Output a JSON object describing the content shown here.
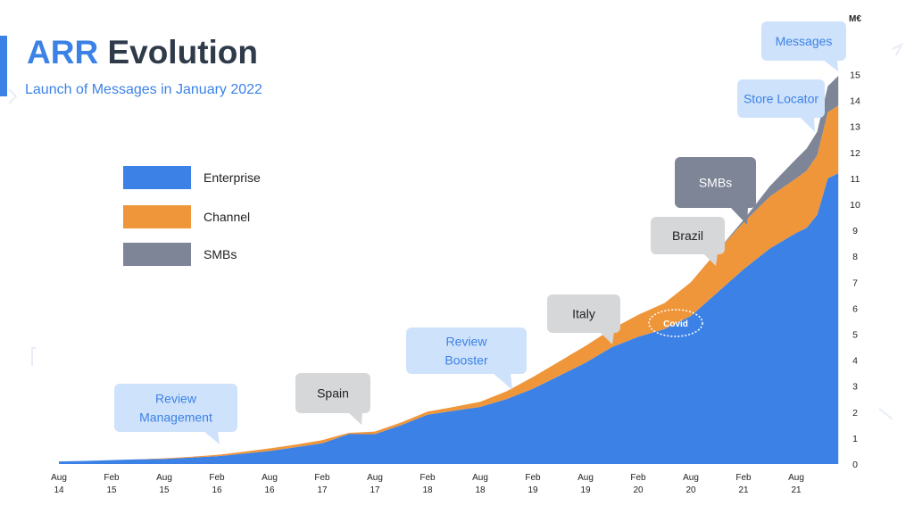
{
  "header": {
    "title_part1": "ARR",
    "title_part2": "Evolution",
    "subtitle": "Launch of Messages in January 2022"
  },
  "legend": [
    {
      "label": "Enterprise",
      "color": "#3c82e6"
    },
    {
      "label": "Channel",
      "color": "#f0963a"
    },
    {
      "label": "SMBs",
      "color": "#7d8596"
    }
  ],
  "chart_data": {
    "type": "area",
    "stacked": true,
    "ylabel": "M€",
    "ylim": [
      0,
      15
    ],
    "yticks": [
      "0",
      "1",
      "2",
      "3",
      "4",
      "5",
      "6",
      "7",
      "8",
      "9",
      "10",
      "11",
      "12",
      "13",
      "14",
      "15"
    ],
    "xticks": [
      [
        "Aug",
        "14"
      ],
      [
        "Feb",
        "15"
      ],
      [
        "Aug",
        "15"
      ],
      [
        "Feb",
        "16"
      ],
      [
        "Aug",
        "16"
      ],
      [
        "Feb",
        "17"
      ],
      [
        "Aug",
        "17"
      ],
      [
        "Feb",
        "18"
      ],
      [
        "Aug",
        "18"
      ],
      [
        "Feb",
        "19"
      ],
      [
        "Aug",
        "19"
      ],
      [
        "Feb",
        "20"
      ],
      [
        "Aug",
        "20"
      ],
      [
        "Feb",
        "21"
      ],
      [
        "Aug",
        "21"
      ]
    ],
    "x": [
      0,
      0.5,
      1,
      1.5,
      2,
      2.5,
      3,
      3.5,
      4,
      4.5,
      5,
      5.5,
      6,
      6.5,
      7,
      7.5,
      8,
      8.5,
      9,
      9.5,
      10,
      10.5,
      11,
      11.5,
      12,
      12.5,
      13,
      13.5,
      14,
      14.2,
      14.4,
      14.6,
      14.8
    ],
    "series": [
      {
        "name": "Enterprise",
        "color": "#3c82e6",
        "values": [
          0.1,
          0.12,
          0.15,
          0.18,
          0.2,
          0.25,
          0.3,
          0.4,
          0.5,
          0.65,
          0.8,
          1.15,
          1.15,
          1.5,
          1.9,
          2.05,
          2.2,
          2.5,
          2.9,
          3.4,
          3.9,
          4.5,
          4.9,
          5.2,
          5.7,
          6.6,
          7.5,
          8.3,
          8.9,
          9.1,
          9.6,
          11.0,
          11.2
        ]
      },
      {
        "name": "Channel",
        "color": "#f0963a",
        "values": [
          0,
          0,
          0,
          0,
          0.02,
          0.03,
          0.05,
          0.07,
          0.1,
          0.1,
          0.12,
          0.05,
          0.1,
          0.1,
          0.12,
          0.15,
          0.2,
          0.3,
          0.45,
          0.55,
          0.65,
          0.7,
          0.85,
          1.0,
          1.3,
          1.6,
          1.8,
          2.0,
          2.1,
          2.2,
          2.3,
          2.55,
          2.6
        ]
      },
      {
        "name": "SMBs",
        "color": "#7d8596",
        "values": [
          0,
          0,
          0,
          0,
          0,
          0,
          0,
          0,
          0,
          0,
          0,
          0,
          0,
          0,
          0,
          0,
          0,
          0,
          0,
          0,
          0,
          0,
          0,
          0,
          0,
          0,
          0.1,
          0.4,
          0.75,
          0.85,
          0.9,
          1.0,
          1.15
        ]
      }
    ],
    "annotations": [
      {
        "text": "Review Management",
        "lines": [
          "Review",
          "Management"
        ],
        "style": "blue"
      },
      {
        "text": "Spain",
        "lines": [
          "Spain"
        ],
        "style": "gray"
      },
      {
        "text": "Review Booster",
        "lines": [
          "Review",
          "Booster"
        ],
        "style": "blue"
      },
      {
        "text": "Italy",
        "lines": [
          "Italy"
        ],
        "style": "gray"
      },
      {
        "text": "Covid",
        "lines": [
          "Covid"
        ],
        "style": "circle"
      },
      {
        "text": "Brazil",
        "lines": [
          "Brazil"
        ],
        "style": "gray"
      },
      {
        "text": "SMBs",
        "lines": [
          "SMBs"
        ],
        "style": "dark"
      },
      {
        "text": "Store Locator",
        "lines": [
          "Store Locator"
        ],
        "style": "blue"
      },
      {
        "text": "Messages",
        "lines": [
          "Messages"
        ],
        "style": "blue"
      }
    ]
  }
}
